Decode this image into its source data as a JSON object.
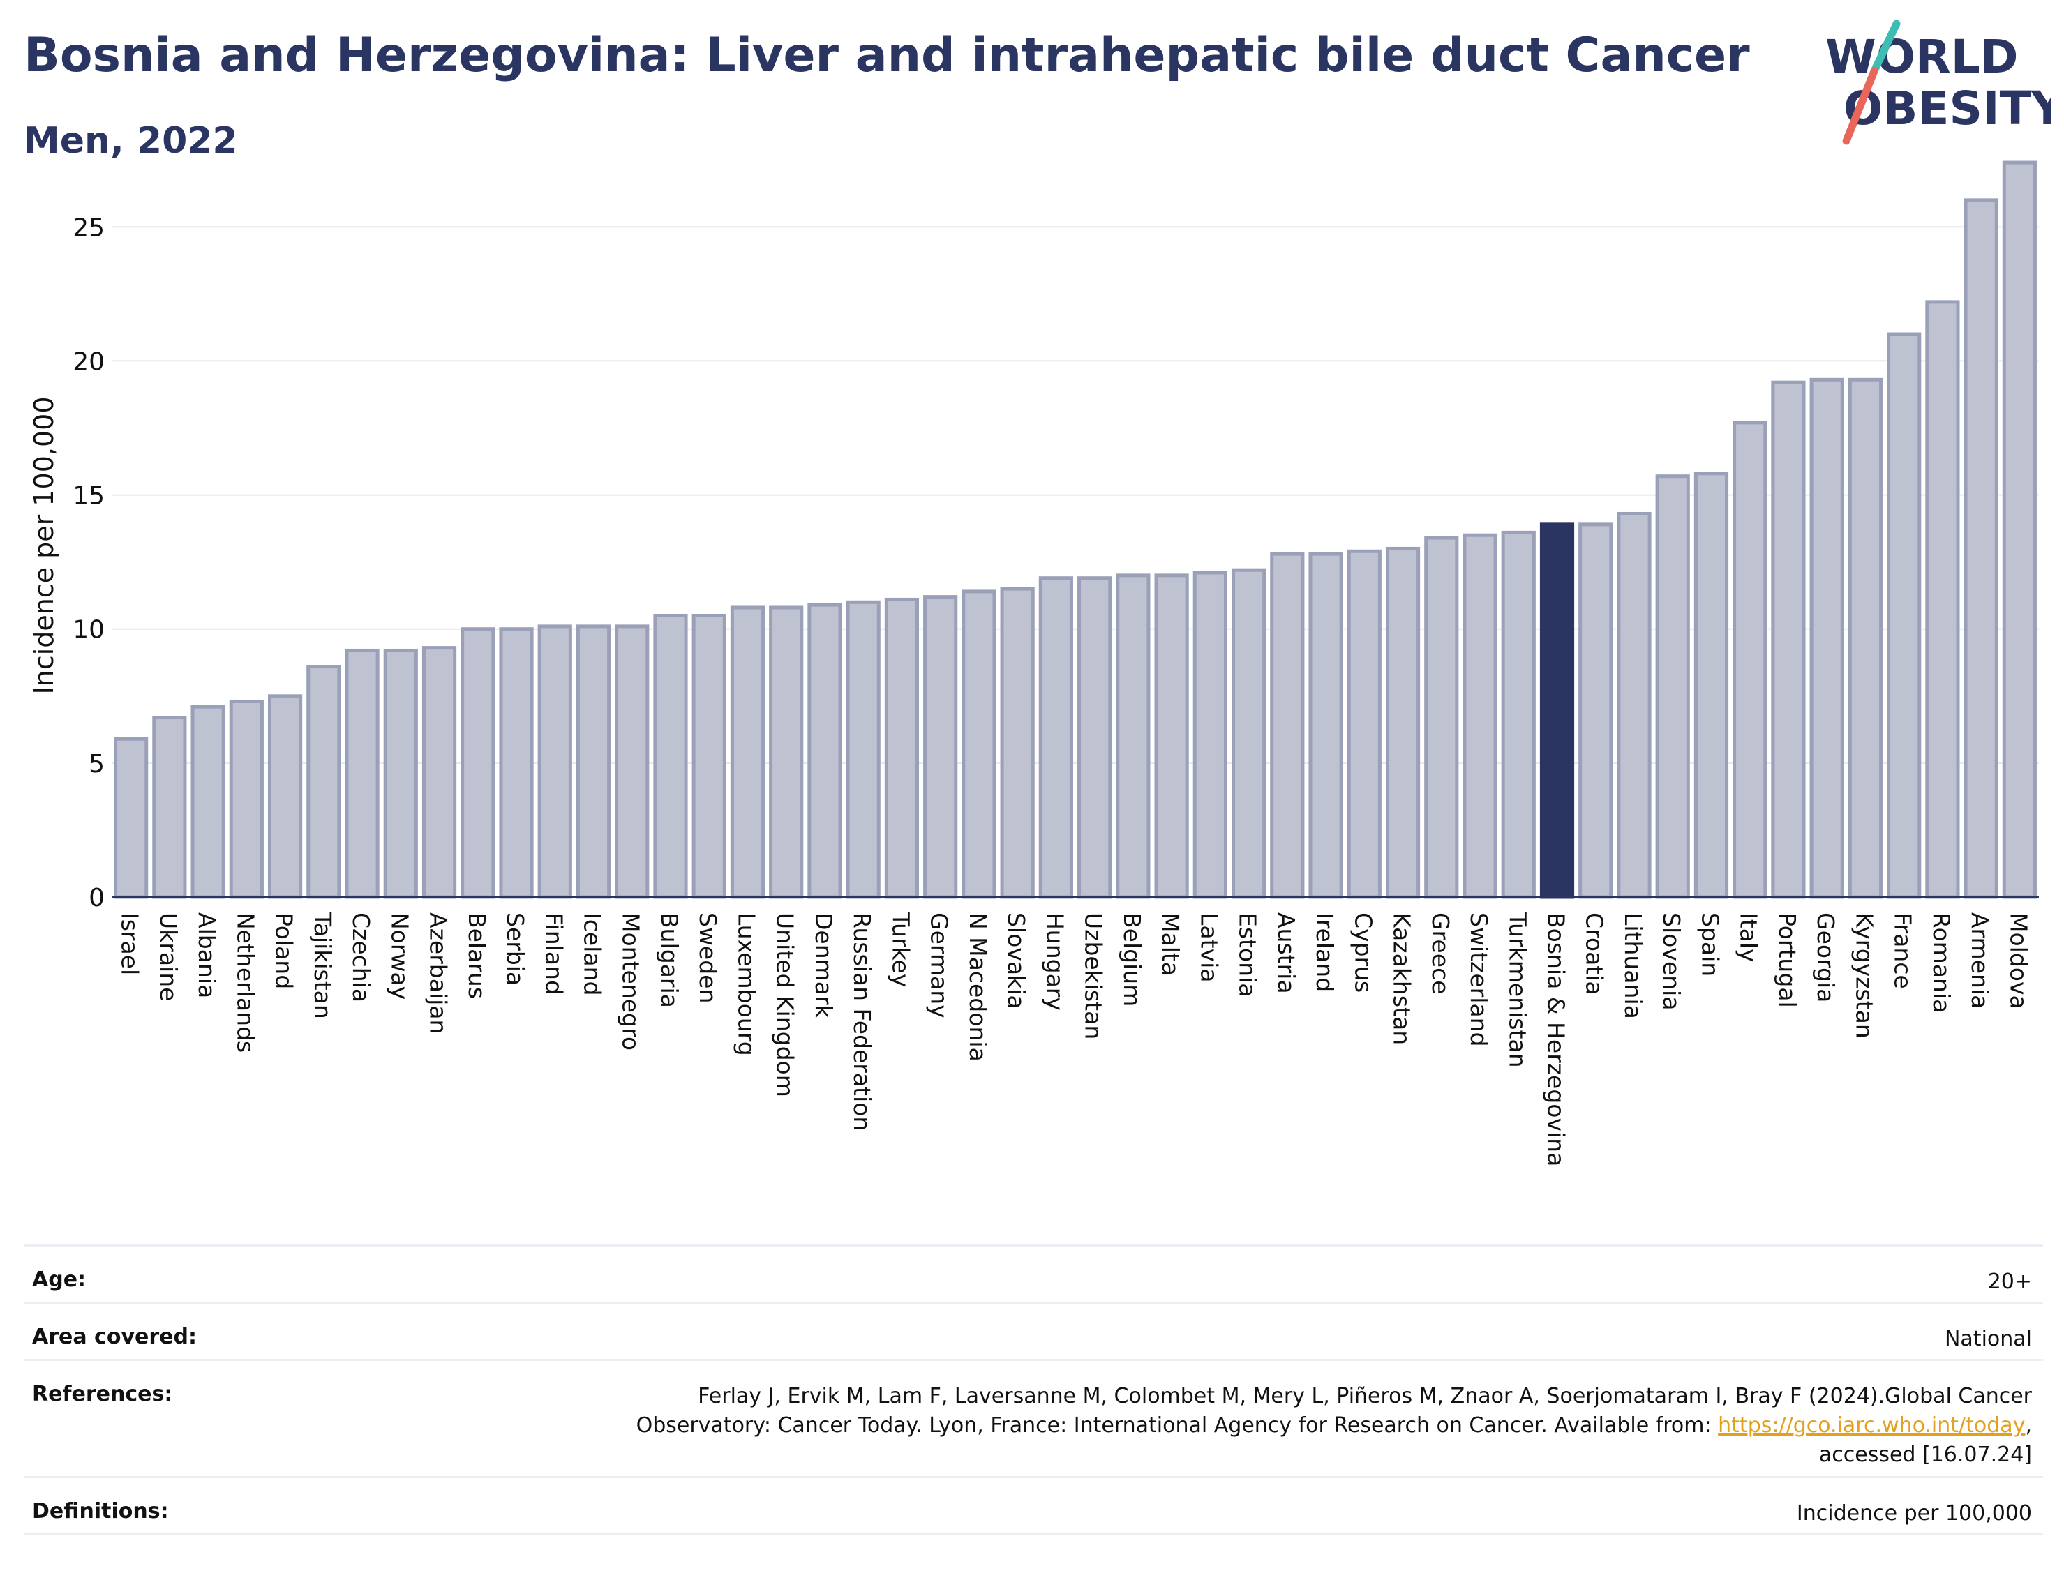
{
  "header": {
    "title": "Bosnia and Herzegovina: Liver and intrahepatic bile duct Cancer",
    "subtitle": "Men, 2022"
  },
  "logo": {
    "line1": "WORLD",
    "line2": "OBESITY"
  },
  "colors": {
    "bar": "#bfc3d1",
    "bar_edge": "#9aa0b8",
    "highlight": "#2b3561",
    "text": "#2b3561",
    "link": "#e3a01c"
  },
  "chart_data": {
    "type": "bar",
    "title": "Bosnia and Herzegovina: Liver and intrahepatic bile duct Cancer",
    "subtitle": "Men, 2022",
    "ylabel": "Incidence per 100,000",
    "xlabel": "",
    "ylim": [
      0,
      28
    ],
    "yticks": [
      0,
      5,
      10,
      15,
      20,
      25
    ],
    "grid": true,
    "highlight": "Bosnia & Herzegovina",
    "categories": [
      "Israel",
      "Ukraine",
      "Albania",
      "Netherlands",
      "Poland",
      "Tajikistan",
      "Czechia",
      "Norway",
      "Azerbaijan",
      "Belarus",
      "Serbia",
      "Finland",
      "Iceland",
      "Montenegro",
      "Bulgaria",
      "Sweden",
      "Luxembourg",
      "United Kingdom",
      "Denmark",
      "Russian Federation",
      "Turkey",
      "Germany",
      "N Macedonia",
      "Slovakia",
      "Hungary",
      "Uzbekistan",
      "Belgium",
      "Malta",
      "Latvia",
      "Estonia",
      "Austria",
      "Ireland",
      "Cyprus",
      "Kazakhstan",
      "Greece",
      "Switzerland",
      "Turkmenistan",
      "Bosnia & Herzegovina",
      "Croatia",
      "Lithuania",
      "Slovenia",
      "Spain",
      "Italy",
      "Portugal",
      "Georgia",
      "Kyrgyzstan",
      "France",
      "Romania",
      "Armenia",
      "Moldova"
    ],
    "values": [
      5.9,
      6.7,
      7.1,
      7.3,
      7.5,
      8.6,
      9.2,
      9.2,
      9.3,
      10.0,
      10.0,
      10.1,
      10.1,
      10.1,
      10.5,
      10.5,
      10.8,
      10.8,
      10.9,
      11.0,
      11.1,
      11.2,
      11.4,
      11.5,
      11.9,
      11.9,
      12.0,
      12.0,
      12.1,
      12.2,
      12.8,
      12.8,
      12.9,
      13.0,
      13.4,
      13.5,
      13.6,
      13.9,
      13.9,
      14.3,
      15.7,
      15.8,
      17.7,
      19.2,
      19.3,
      19.3,
      21.0,
      22.2,
      26.0,
      27.4
    ]
  },
  "meta": {
    "age_label": "Age:",
    "age_value": "20+",
    "area_label": "Area covered:",
    "area_value": "National",
    "references_label": "References:",
    "references_line1": "Ferlay J, Ervik M, Lam F, Laversanne M, Colombet M, Mery L, Piñeros M, Znaor A, Soerjomataram I, Bray F (2024).Global Cancer",
    "references_line2": "Observatory: Cancer Today. Lyon, France: International Agency for Research on Cancer. Available from: ",
    "references_link": "https://gco.iarc.who.int/today",
    "references_comma": ",",
    "references_line3": "accessed [16.07.24]",
    "definitions_label": "Definitions:",
    "definitions_value": "Incidence per 100,000"
  }
}
